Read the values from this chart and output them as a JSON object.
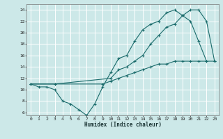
{
  "xlabel": "Humidex (Indice chaleur)",
  "bg_color": "#cce8e8",
  "grid_color": "#ffffff",
  "line_color": "#1a6b6b",
  "xlim": [
    -0.5,
    23.5
  ],
  "ylim": [
    5.5,
    25
  ],
  "xticks": [
    0,
    1,
    2,
    3,
    4,
    5,
    6,
    7,
    8,
    9,
    10,
    11,
    12,
    13,
    14,
    15,
    16,
    17,
    18,
    19,
    20,
    21,
    22,
    23
  ],
  "yticks": [
    6,
    8,
    10,
    12,
    14,
    16,
    18,
    20,
    22,
    24
  ],
  "line1_x": [
    0,
    1,
    2,
    3,
    4,
    5,
    6,
    7,
    8,
    9,
    10,
    11,
    12,
    13,
    14,
    15,
    16,
    17,
    18,
    19,
    20,
    21,
    22
  ],
  "line1_y": [
    11,
    10.5,
    10.5,
    10,
    8,
    7.5,
    6.5,
    5.5,
    7.5,
    10.5,
    13,
    15.5,
    16,
    18.5,
    20.5,
    21.5,
    22,
    23.5,
    24,
    23,
    22,
    18.5,
    15
  ],
  "line2_x": [
    0,
    3,
    10,
    11,
    12,
    13,
    14,
    15,
    16,
    17,
    18,
    19,
    20,
    21,
    22,
    23
  ],
  "line2_y": [
    11,
    11,
    12,
    13.5,
    14,
    15,
    16,
    18,
    19.5,
    21,
    21.5,
    23,
    24,
    24,
    22,
    15
  ],
  "line3_x": [
    0,
    3,
    9,
    10,
    11,
    12,
    13,
    14,
    15,
    16,
    17,
    18,
    19,
    20,
    21,
    22,
    23
  ],
  "line3_y": [
    11,
    11,
    11,
    11.5,
    12,
    12.5,
    13,
    13.5,
    14,
    14.5,
    14.5,
    15,
    15,
    15,
    15,
    15,
    15
  ]
}
